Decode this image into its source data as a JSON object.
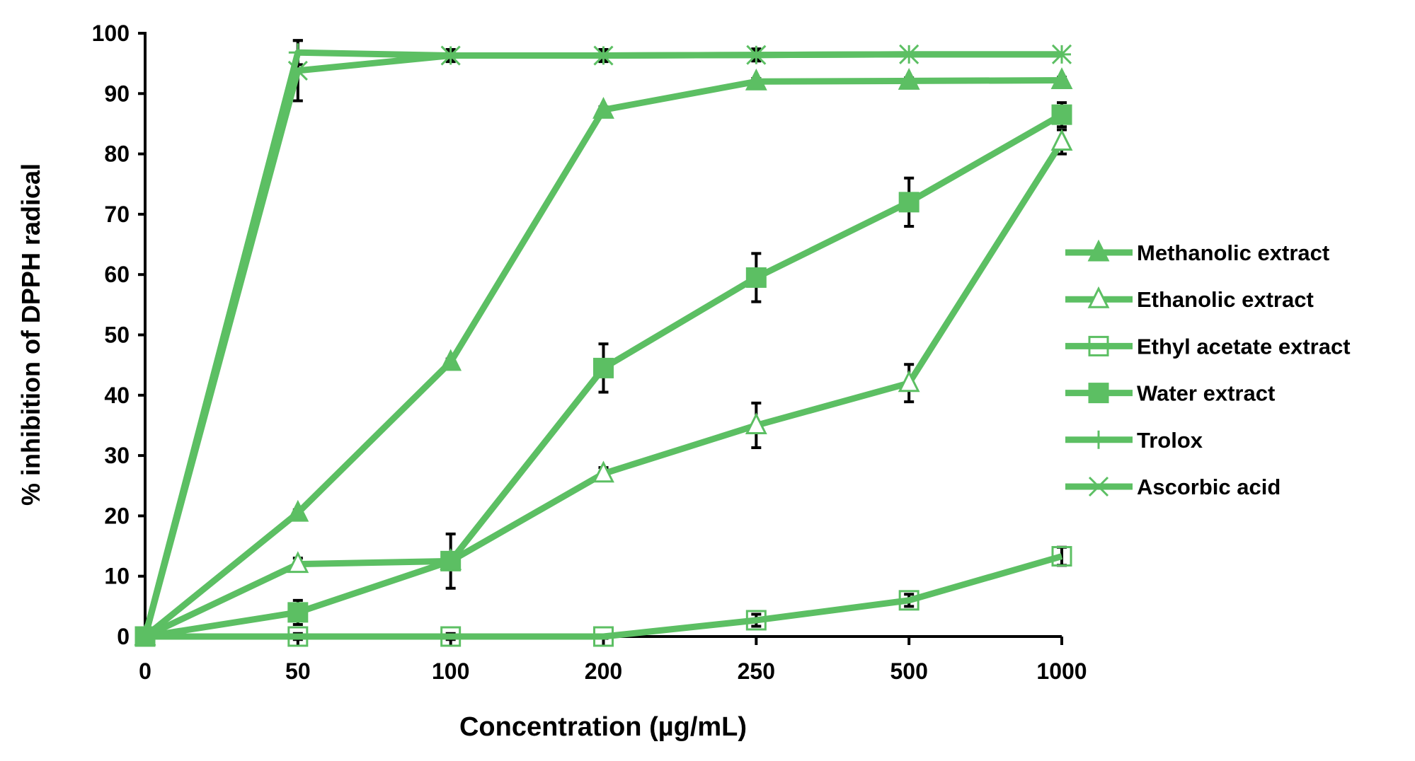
{
  "chart_data": {
    "type": "line",
    "xlabel": "Concentration (µg/mL)",
    "ylabel": "% inhibition of DPPH radical",
    "categories": [
      "0",
      "50",
      "100",
      "200",
      "250",
      "500",
      "1000"
    ],
    "ylim": [
      0,
      100
    ],
    "yticks": [
      "0",
      "10",
      "20",
      "30",
      "40",
      "50",
      "60",
      "70",
      "80",
      "90",
      "100"
    ],
    "grid": false,
    "legend_position": "right",
    "line_color": "#5cbf63",
    "series": [
      {
        "name": "Methanolic extract",
        "marker": "triangle-filled",
        "values": [
          0,
          20.5,
          45.5,
          87.3,
          92.0,
          92.1,
          92.2
        ],
        "errors": [
          0,
          0.5,
          0.5,
          0.5,
          0.5,
          0.5,
          0.5
        ]
      },
      {
        "name": "Ethanolic extract",
        "marker": "triangle-open",
        "values": [
          0,
          12.0,
          12.5,
          27.0,
          35.0,
          42.0,
          82.0
        ],
        "errors": [
          0,
          1,
          1,
          1,
          3.7,
          3.1,
          2
        ]
      },
      {
        "name": "Ethyl acetate extract",
        "marker": "square-open",
        "values": [
          0,
          0,
          0,
          0,
          2.7,
          6.0,
          13.3
        ],
        "errors": [
          0,
          0.5,
          0.5,
          0.3,
          1,
          1,
          1.5
        ]
      },
      {
        "name": "Water extract",
        "marker": "square-filled",
        "values": [
          0,
          4.0,
          12.5,
          44.5,
          59.5,
          72.0,
          86.5
        ],
        "errors": [
          0,
          2,
          4.5,
          4,
          4,
          4,
          2
        ]
      },
      {
        "name": "Trolox",
        "marker": "plus",
        "values": [
          0,
          96.8,
          96.3,
          96.3,
          96.4,
          96.5,
          96.5
        ],
        "errors": [
          0,
          2,
          1,
          1,
          1,
          0,
          0
        ]
      },
      {
        "name": "Ascorbic acid",
        "marker": "x",
        "values": [
          0,
          93.8,
          96.3,
          96.3,
          96.4,
          96.5,
          96.5
        ],
        "errors": [
          0,
          5,
          0.8,
          0.8,
          0.8,
          0,
          0
        ]
      }
    ]
  }
}
